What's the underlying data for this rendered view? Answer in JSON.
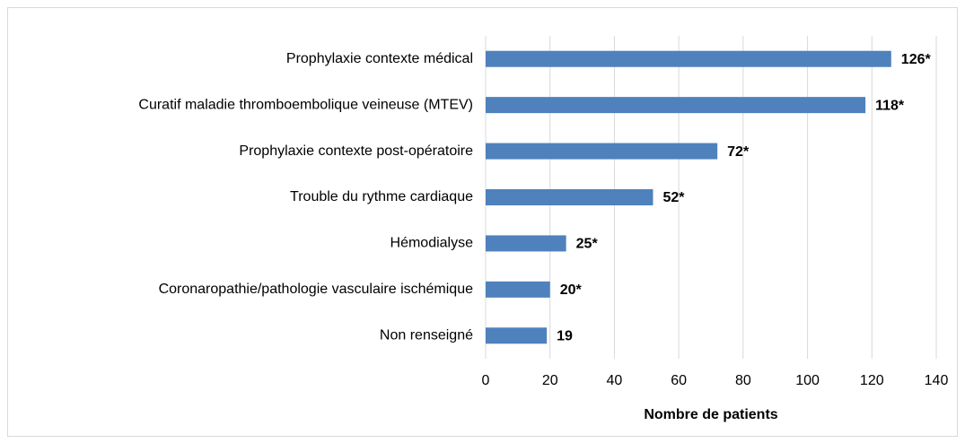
{
  "chart_data": {
    "type": "barh",
    "categories": [
      "Prophylaxie contexte médical",
      "Curatif maladie thromboembolique veineuse (MTEV)",
      "Prophylaxie contexte post-opératoire",
      "Trouble du rythme cardiaque",
      "Hémodialyse",
      "Coronaropathie/pathologie vasculaire ischémique",
      "Non renseigné"
    ],
    "values": [
      126,
      118,
      72,
      52,
      25,
      20,
      19
    ],
    "value_labels": [
      "126*",
      "118*",
      "72*",
      "52*",
      "25*",
      "20*",
      "19"
    ],
    "color": "#4f81bd",
    "xlabel": "Nombre de patients",
    "xlim": [
      0,
      140
    ],
    "xticks": [
      0,
      20,
      40,
      60,
      80,
      100,
      120,
      140
    ],
    "grid": true
  }
}
